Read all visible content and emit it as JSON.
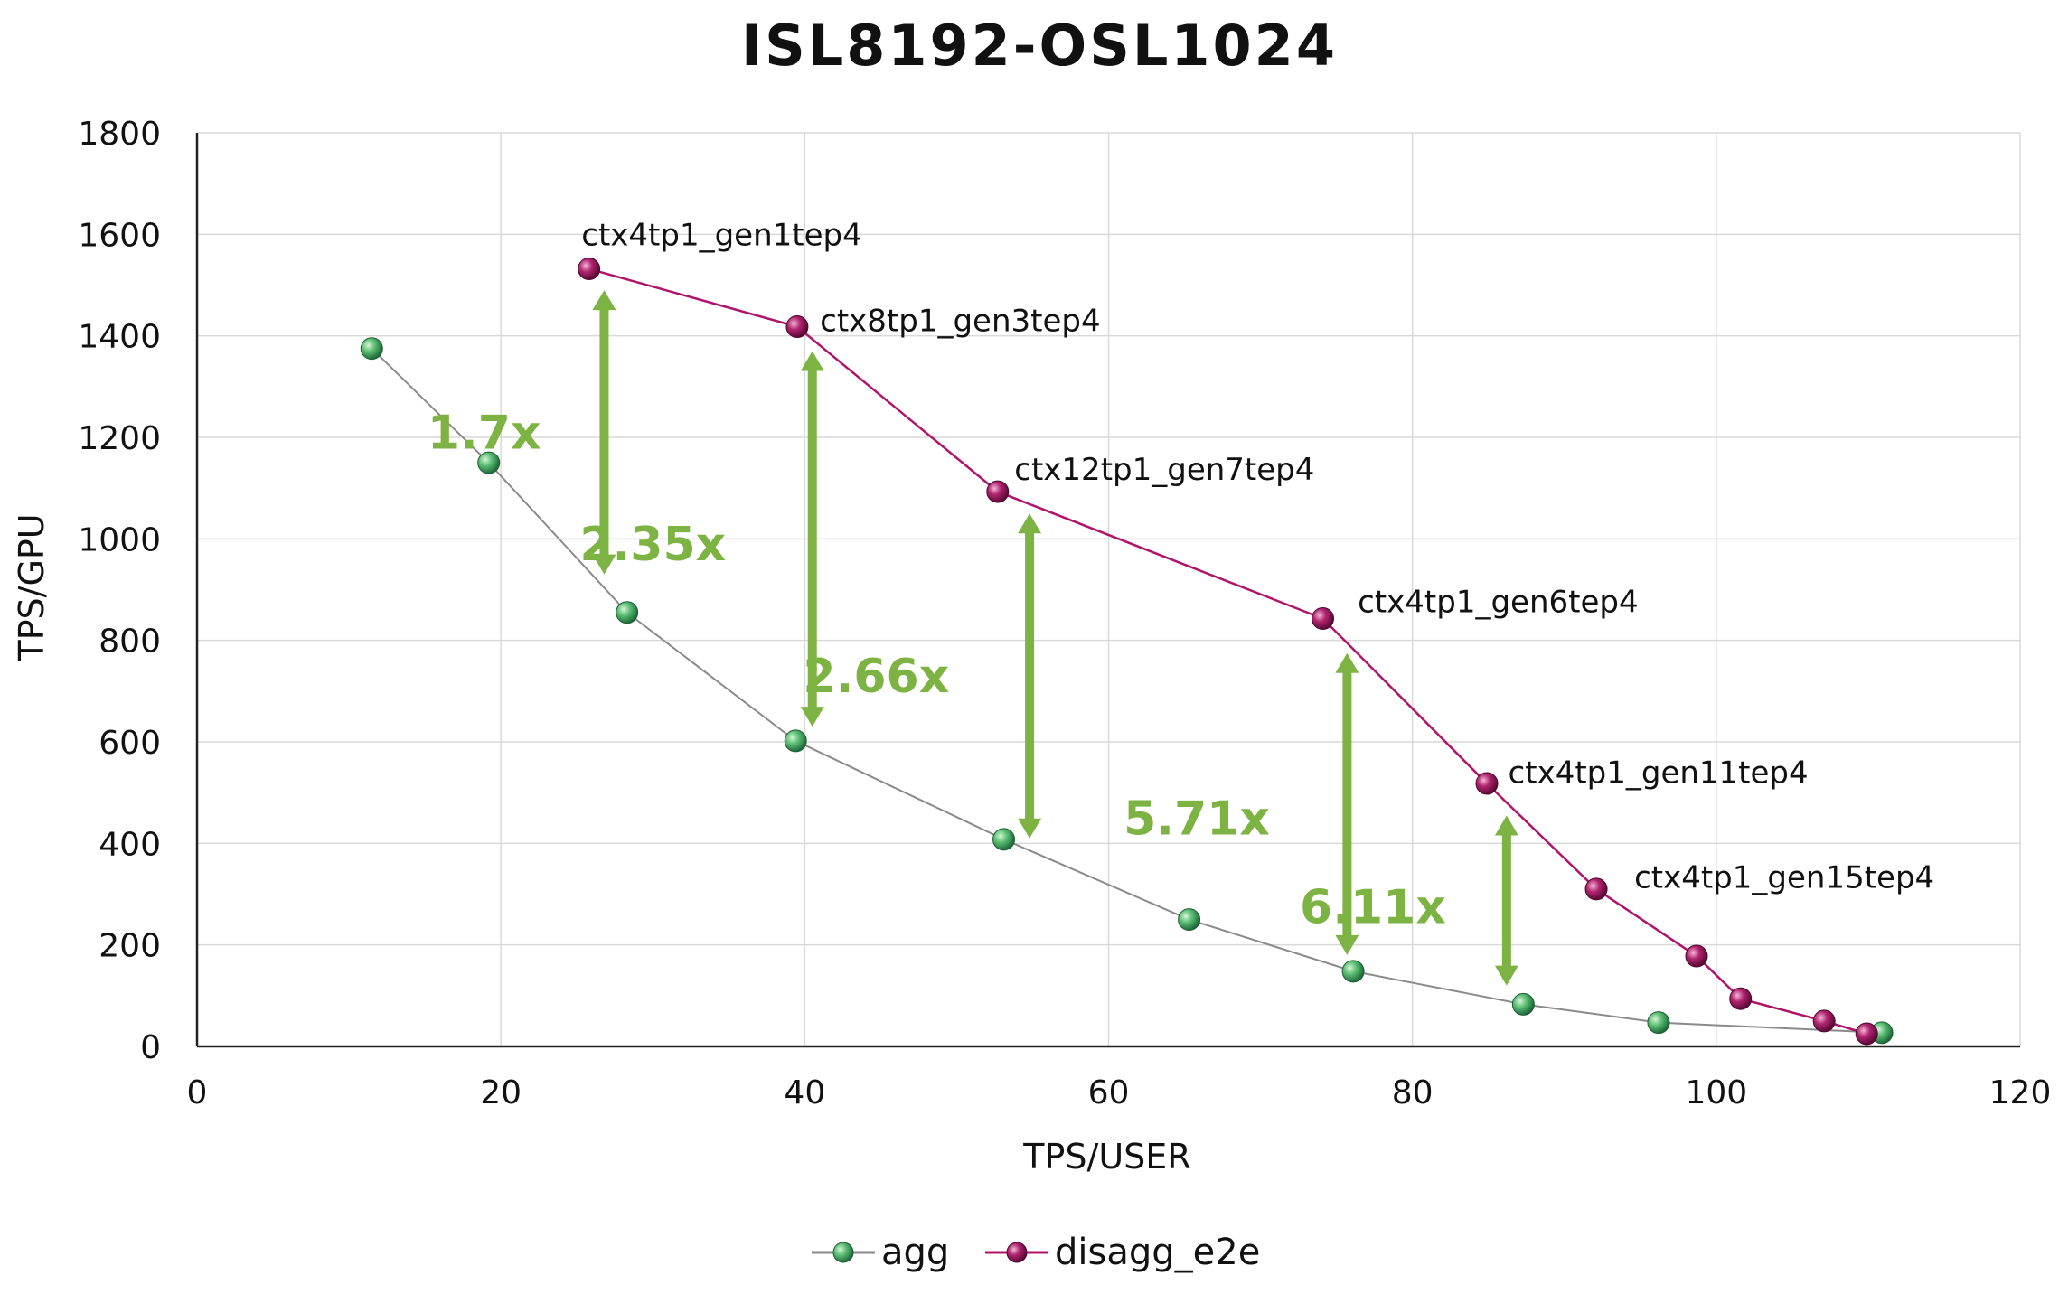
{
  "chart_data": {
    "type": "line",
    "title": "ISL8192-OSL1024",
    "xlabel": "TPS/USER",
    "ylabel": "TPS/GPU",
    "xlim": [
      0,
      120
    ],
    "ylim": [
      0,
      1800
    ],
    "xticks": [
      0,
      20,
      40,
      60,
      80,
      100,
      120
    ],
    "yticks": [
      0,
      200,
      400,
      600,
      800,
      1000,
      1200,
      1400,
      1600,
      1800
    ],
    "xtick_labels": [
      "0",
      "20",
      "40",
      "60",
      "80",
      "100",
      "120"
    ],
    "ytick_labels": [
      "0",
      "200",
      "400",
      "600",
      "800",
      "1000",
      "1200",
      "1400",
      "1600",
      "1800"
    ],
    "grid": true,
    "legend_position": "bottom-center",
    "series": [
      {
        "name": "agg",
        "color": "#3a9a5b",
        "line_color": "#8a8a8a",
        "points": [
          [
            11.5,
            1375
          ],
          [
            19.2,
            1150
          ],
          [
            28.3,
            855
          ],
          [
            39.4,
            602
          ],
          [
            53.1,
            408
          ],
          [
            65.3,
            250
          ],
          [
            76.1,
            148
          ],
          [
            87.3,
            83
          ],
          [
            96.2,
            47
          ],
          [
            110.9,
            27
          ]
        ]
      },
      {
        "name": "disagg_e2e",
        "color": "#a0185e",
        "line_color": "#b0146a",
        "points": [
          [
            25.8,
            1532
          ],
          [
            39.5,
            1418
          ],
          [
            52.7,
            1093
          ],
          [
            74.1,
            843
          ],
          [
            84.9,
            518
          ],
          [
            92.1,
            310
          ],
          [
            98.7,
            178
          ],
          [
            101.6,
            94
          ],
          [
            107.1,
            50
          ],
          [
            109.9,
            25
          ]
        ]
      }
    ],
    "annotations": [
      {
        "text": "ctx4tp1_gen1tep4",
        "x": 25.3,
        "y": 1600
      },
      {
        "text": "ctx8tp1_gen3tep4",
        "x": 41.0,
        "y": 1431
      },
      {
        "text": "ctx12tp1_gen7tep4",
        "x": 53.8,
        "y": 1138
      },
      {
        "text": "ctx4tp1_gen6tep4",
        "x": 76.4,
        "y": 877
      },
      {
        "text": "ctx4tp1_gen11tep4",
        "x": 86.3,
        "y": 540
      },
      {
        "text": "ctx4tp1_gen15tep4",
        "x": 94.6,
        "y": 334
      }
    ],
    "ratio_arrows": [
      {
        "text": "1.7x",
        "x": 26.8,
        "y_top": 1490,
        "y_bottom": 930,
        "label_x": 18.9,
        "label_y": 1210
      },
      {
        "text": "2.35x",
        "x": 40.5,
        "y_top": 1370,
        "y_bottom": 630,
        "label_x": 30.0,
        "label_y": 990
      },
      {
        "text": "2.66x",
        "x": 54.8,
        "y_top": 1050,
        "y_bottom": 410,
        "label_x": 44.7,
        "label_y": 730
      },
      {
        "text": "5.71x",
        "x": 75.7,
        "y_top": 775,
        "y_bottom": 180,
        "label_x": 65.8,
        "label_y": 450
      },
      {
        "text": "6.11x",
        "x": 86.2,
        "y_top": 455,
        "y_bottom": 120,
        "label_x": 77.4,
        "label_y": 275
      }
    ],
    "arrow_color": "#7cb342"
  }
}
